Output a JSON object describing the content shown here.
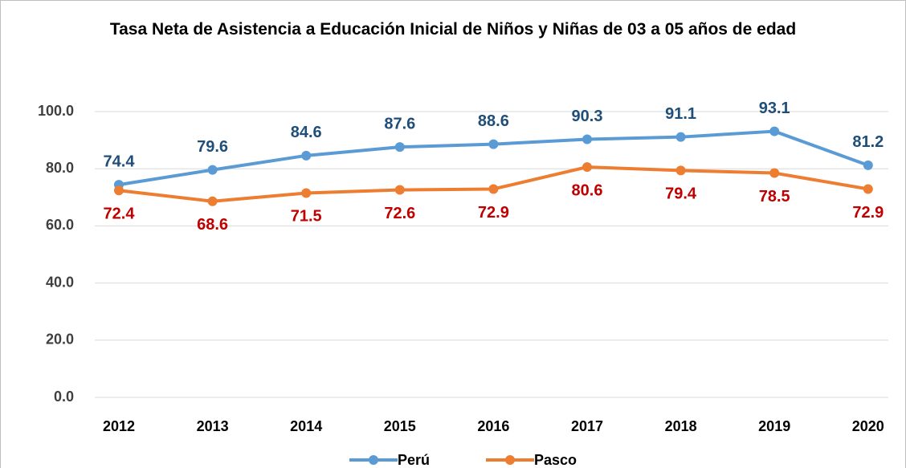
{
  "chart_data": {
    "type": "line",
    "title": "Tasa Neta de Asistencia a Educación Inicial de Niños y Niñas de 03 a 05 años de edad",
    "categories": [
      "2012",
      "2013",
      "2014",
      "2015",
      "2016",
      "2017",
      "2018",
      "2019",
      "2020"
    ],
    "series": [
      {
        "name": "Perú",
        "color": "#5b9bd5",
        "label_color": "#1f4e79",
        "values": [
          74.4,
          79.6,
          84.6,
          87.6,
          88.6,
          90.3,
          91.1,
          93.1,
          81.2
        ]
      },
      {
        "name": "Pasco",
        "color": "#ed7d31",
        "label_color": "#c00000",
        "values": [
          72.4,
          68.6,
          71.5,
          72.6,
          72.9,
          80.6,
          79.4,
          78.5,
          72.9
        ]
      }
    ],
    "ylim": [
      0,
      100
    ],
    "yticks": [
      {
        "value": 0,
        "label": "0.0"
      },
      {
        "value": 20,
        "label": "20.0"
      },
      {
        "value": 40,
        "label": "40.0"
      },
      {
        "value": 60,
        "label": "60.0"
      },
      {
        "value": 80,
        "label": "80.0"
      },
      {
        "value": 100,
        "label": "100.0"
      }
    ],
    "grid": true,
    "legend": "bottom"
  }
}
